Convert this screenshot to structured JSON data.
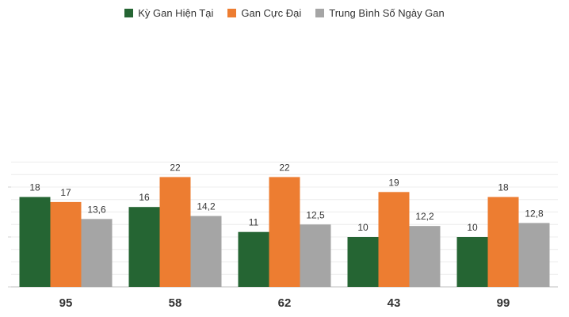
{
  "chart_data": {
    "type": "bar",
    "title": "",
    "xlabel": "",
    "ylabel": "",
    "categories": [
      "95",
      "58",
      "62",
      "43",
      "99"
    ],
    "series": [
      {
        "name": "Kỳ Gan Hiện Tại",
        "color": "#256533",
        "values": [
          18,
          16,
          11,
          10,
          10
        ],
        "labels": [
          "18",
          "16",
          "11",
          "10",
          "10"
        ]
      },
      {
        "name": "Gan Cực Đại",
        "color": "#ed7d31",
        "values": [
          17,
          22,
          22,
          19,
          18
        ],
        "labels": [
          "17",
          "22",
          "22",
          "19",
          "18"
        ]
      },
      {
        "name": "Trung Bình Số Ngày Gan",
        "color": "#a5a5a5",
        "values": [
          13.6,
          14.2,
          12.5,
          12.2,
          12.8
        ],
        "labels": [
          "13,6",
          "14,2",
          "12,5",
          "12,2",
          "12,8"
        ]
      }
    ],
    "ylim": [
      0,
      25
    ],
    "grid": true,
    "legend": "top-center"
  }
}
